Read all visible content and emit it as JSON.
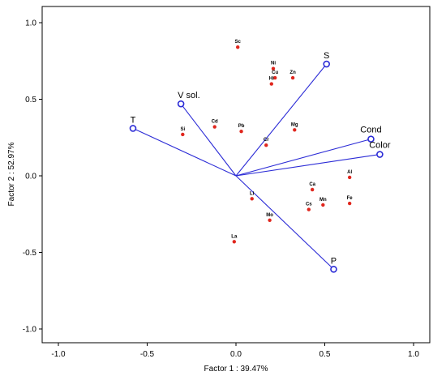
{
  "chart_data": {
    "type": "scatter",
    "subtype": "pca-biplot",
    "xlabel": "Factor 1 : 39.47%",
    "ylabel": "Factor 2 : 52.97%",
    "xlim": [
      -1.0,
      1.0
    ],
    "ylim": [
      -1.0,
      1.0
    ],
    "xticks": [
      -1.0,
      -0.5,
      0.0,
      0.5,
      1.0
    ],
    "yticks": [
      -1.0,
      -0.5,
      0.0,
      0.5,
      1.0
    ],
    "grid": false,
    "colors": {
      "vector": "#2b2bd6",
      "point": "#e0261d",
      "frame": "#000000"
    },
    "variables": [
      {
        "label": "S",
        "x": 0.51,
        "y": 0.73
      },
      {
        "label": "V sol.",
        "x": -0.31,
        "y": 0.47
      },
      {
        "label": "T",
        "x": -0.58,
        "y": 0.31
      },
      {
        "label": "Cond",
        "x": 0.76,
        "y": 0.24
      },
      {
        "label": "Color",
        "x": 0.81,
        "y": 0.14
      },
      {
        "label": "P",
        "x": 0.55,
        "y": -0.61
      }
    ],
    "elements": [
      {
        "label": "Sc",
        "x": 0.01,
        "y": 0.84
      },
      {
        "label": "Ni",
        "x": 0.21,
        "y": 0.7
      },
      {
        "label": "Cu",
        "x": 0.22,
        "y": 0.64
      },
      {
        "label": "Zn",
        "x": 0.32,
        "y": 0.64
      },
      {
        "label": "Hi",
        "x": 0.2,
        "y": 0.6
      },
      {
        "label": "Cd",
        "x": -0.12,
        "y": 0.32
      },
      {
        "label": "Pb",
        "x": 0.03,
        "y": 0.29
      },
      {
        "label": "Mg",
        "x": 0.33,
        "y": 0.3
      },
      {
        "label": "Si",
        "x": -0.3,
        "y": 0.27
      },
      {
        "label": "Cr",
        "x": 0.17,
        "y": 0.2
      },
      {
        "label": "Al",
        "x": 0.64,
        "y": -0.01
      },
      {
        "label": "Ca",
        "x": 0.43,
        "y": -0.09
      },
      {
        "label": "Li",
        "x": 0.09,
        "y": -0.15
      },
      {
        "label": "Mn",
        "x": 0.49,
        "y": -0.19
      },
      {
        "label": "Fe",
        "x": 0.64,
        "y": -0.18
      },
      {
        "label": "Cs",
        "x": 0.41,
        "y": -0.22
      },
      {
        "label": "Mo",
        "x": 0.19,
        "y": -0.29
      },
      {
        "label": "La",
        "x": -0.01,
        "y": -0.43
      }
    ]
  }
}
